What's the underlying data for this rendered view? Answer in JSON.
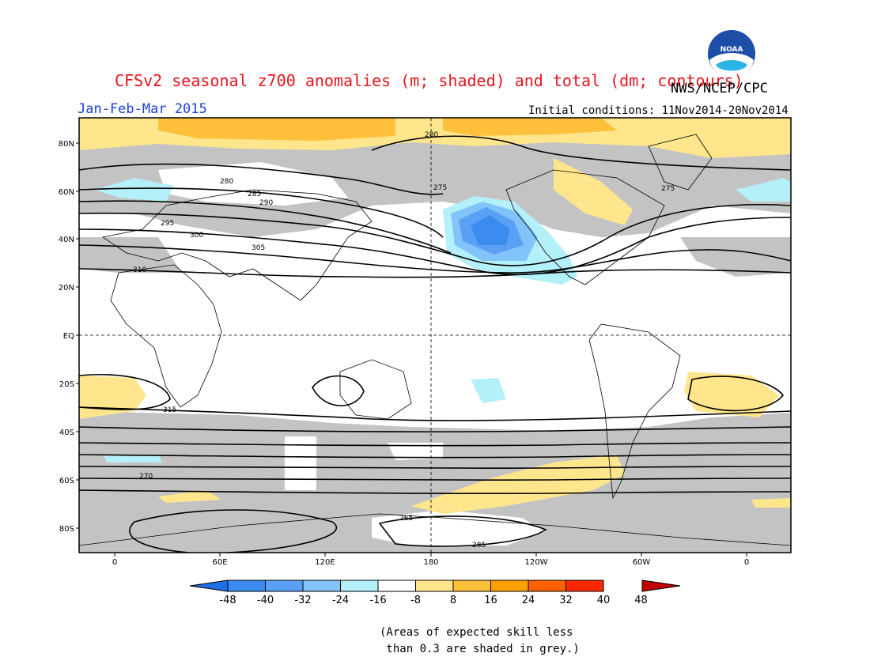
{
  "title": "CFSv2 seasonal z700 anomalies (m; shaded) and total (dm; contours)",
  "agency": "NWS/NCEP/CPC",
  "logo_text": "NOAA",
  "period": "Jan-Feb-Mar 2015",
  "initial_conditions": "Initial conditions: 11Nov2014-20Nov2014",
  "lat_labels": [
    "80N",
    "60N",
    "40N",
    "20N",
    "EQ",
    "20S",
    "40S",
    "60S",
    "80S"
  ],
  "lon_labels": [
    "0",
    "60E",
    "120E",
    "180",
    "120W",
    "60W",
    "0"
  ],
  "colorbar": {
    "ticks": [
      "-48",
      "-40",
      "-32",
      "-24",
      "-16",
      "-8",
      "8",
      "16",
      "24",
      "32",
      "40",
      "48"
    ],
    "colors": [
      "#1e6ee6",
      "#3c8cf0",
      "#5aa0f5",
      "#82c3fa",
      "#b4f0fa",
      "#ffffff",
      "#ffe68c",
      "#ffc03c",
      "#ffa000",
      "#ff6000",
      "#ff2800",
      "#c00000"
    ]
  },
  "contour_labels": [
    "280",
    "275",
    "275",
    "280",
    "285",
    "290",
    "295",
    "300",
    "305",
    "310",
    "315",
    "270",
    "265",
    "285"
  ],
  "footnote": "(Areas of expected skill less\n than 0.3 are shaded in grey.)"
}
